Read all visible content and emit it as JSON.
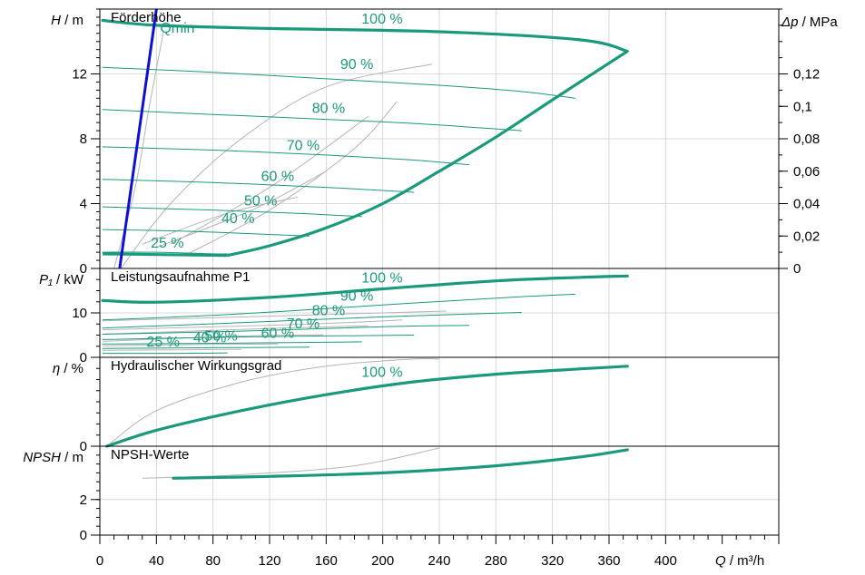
{
  "chart_data": {
    "type": "line",
    "x_axis": {
      "label_symbol": "Q",
      "label_unit": "m³/h",
      "range": [
        0,
        480
      ],
      "ticks": [
        "0",
        "40",
        "80",
        "120",
        "160",
        "200",
        "240",
        "280",
        "320",
        "360",
        "400"
      ]
    },
    "colors": {
      "curve": "#1a9a7c",
      "grey": "#b5b5b5",
      "qmin": "#1010d0",
      "axis": "#000000"
    },
    "panels": [
      {
        "id": "head",
        "title": "Förderhöhe",
        "ylabel_symbol": "H",
        "ylabel_unit": "m",
        "ylim": [
          0,
          16
        ],
        "yticks": [
          "0",
          "4",
          "8",
          "12"
        ],
        "secondary_ylabel_symbol": "Δp",
        "secondary_ylabel_unit": "MPa",
        "secondary_ylim": [
          0,
          0.16
        ],
        "secondary_yticks": [
          "0",
          "0,02",
          "0,04",
          "0,06",
          "0,08",
          "0,1",
          "0,12"
        ],
        "qmin_label": "Qmin",
        "qmin_line": [
          [
            14,
            0
          ],
          [
            40,
            16
          ]
        ],
        "envelope": [
          [
            2,
            15.3
          ],
          [
            40,
            15.0
          ],
          [
            120,
            14.8
          ],
          [
            240,
            14.6
          ],
          [
            340,
            14.1
          ],
          [
            373,
            13.4
          ],
          [
            320,
            10.4
          ],
          [
            280,
            8.1
          ],
          [
            240,
            6.0
          ],
          [
            200,
            4.0
          ],
          [
            160,
            2.5
          ],
          [
            120,
            1.4
          ],
          [
            90,
            0.8
          ],
          [
            2,
            0.9
          ]
        ],
        "series": [
          {
            "name": "100 %",
            "label_x": 185,
            "label_y": 15.1,
            "points": [
              [
                2,
                15.3
              ],
              [
                40,
                15.0
              ],
              [
                120,
                14.8
              ],
              [
                240,
                14.6
              ],
              [
                340,
                14.1
              ],
              [
                373,
                13.4
              ]
            ]
          },
          {
            "name": "90 %",
            "label_x": 170,
            "label_y": 12.3,
            "points": [
              [
                2,
                12.4
              ],
              [
                80,
                12.1
              ],
              [
                160,
                11.7
              ],
              [
                240,
                11.3
              ],
              [
                300,
                10.9
              ],
              [
                336,
                10.5
              ]
            ]
          },
          {
            "name": "80 %",
            "label_x": 150,
            "label_y": 9.6,
            "points": [
              [
                2,
                9.8
              ],
              [
                80,
                9.5
              ],
              [
                160,
                9.2
              ],
              [
                230,
                8.9
              ],
              [
                298,
                8.5
              ]
            ]
          },
          {
            "name": "70 %",
            "label_x": 132,
            "label_y": 7.3,
            "points": [
              [
                2,
                7.5
              ],
              [
                80,
                7.3
              ],
              [
                160,
                7.0
              ],
              [
                220,
                6.7
              ],
              [
                261,
                6.4
              ]
            ]
          },
          {
            "name": "60 %",
            "label_x": 114,
            "label_y": 5.4,
            "points": [
              [
                2,
                5.5
              ],
              [
                80,
                5.3
              ],
              [
                160,
                5.0
              ],
              [
                222,
                4.7
              ]
            ]
          },
          {
            "name": "50 %",
            "label_x": 102,
            "label_y": 3.9,
            "points": [
              [
                2,
                3.8
              ],
              [
                80,
                3.6
              ],
              [
                140,
                3.4
              ],
              [
                185,
                3.2
              ]
            ]
          },
          {
            "name": "40 %",
            "label_x": 86,
            "label_y": 2.8,
            "points": [
              [
                2,
                2.4
              ],
              [
                60,
                2.3
              ],
              [
                120,
                2.1
              ],
              [
                148,
                2.0
              ]
            ]
          },
          {
            "name": "25 %",
            "label_x": 36,
            "label_y": 1.3,
            "points": [
              [
                2,
                1.0
              ],
              [
                40,
                1.0
              ],
              [
                80,
                0.9
              ],
              [
                90,
                0.9
              ]
            ]
          }
        ],
        "grey_curves": [
          [
            [
              10,
              0
            ],
            [
              25,
              5
            ],
            [
              35,
              10
            ],
            [
              45,
              14.6
            ]
          ],
          [
            [
              15,
              0
            ],
            [
              50,
              4
            ],
            [
              100,
              8
            ],
            [
              160,
              11.2
            ],
            [
              235,
              12.6
            ]
          ],
          [
            [
              60,
              0.8
            ],
            [
              120,
              3.6
            ],
            [
              180,
              7.4
            ],
            [
              210,
              10.3
            ]
          ],
          [
            [
              50,
              1.5
            ],
            [
              120,
              5.0
            ],
            [
              190,
              9.4
            ]
          ],
          [
            [
              40,
              1.3
            ],
            [
              110,
              3.7
            ],
            [
              160,
              6.0
            ]
          ],
          [
            [
              30,
              1.5
            ],
            [
              90,
              3.4
            ],
            [
              140,
              4.4
            ]
          ]
        ]
      },
      {
        "id": "power",
        "title": "Leistungsaufnahme P1",
        "ylabel_symbol": "P₁",
        "ylabel_unit": "kW",
        "ylim": [
          0,
          20
        ],
        "yticks": [
          "0",
          "10"
        ],
        "series": [
          {
            "name": "100 %",
            "label_x": 185,
            "label_y": 16.8,
            "points": [
              [
                2,
                12.8
              ],
              [
                40,
                12.4
              ],
              [
                120,
                13.5
              ],
              [
                200,
                15.4
              ],
              [
                280,
                17.2
              ],
              [
                340,
                18.0
              ],
              [
                373,
                18.3
              ]
            ]
          },
          {
            "name": "90 %",
            "label_x": 170,
            "label_y": 12.8,
            "points": [
              [
                2,
                8.4
              ],
              [
                100,
                9.8
              ],
              [
                200,
                11.8
              ],
              [
                290,
                13.5
              ],
              [
                336,
                14.2
              ]
            ]
          },
          {
            "name": "80 %",
            "label_x": 150,
            "label_y": 9.5,
            "points": [
              [
                2,
                6.6
              ],
              [
                100,
                7.8
              ],
              [
                200,
                9.1
              ],
              [
                298,
                10.1
              ]
            ]
          },
          {
            "name": "70 %",
            "label_x": 132,
            "label_y": 6.5,
            "points": [
              [
                2,
                5.2
              ],
              [
                100,
                5.9
              ],
              [
                200,
                6.9
              ],
              [
                261,
                7.2
              ]
            ]
          },
          {
            "name": "60 %",
            "label_x": 114,
            "label_y": 4.4,
            "points": [
              [
                2,
                4.0
              ],
              [
                100,
                4.6
              ],
              [
                222,
                5.0
              ]
            ]
          },
          {
            "name": "50 %",
            "label_x": 74,
            "label_y": 3.8,
            "points": [
              [
                2,
                3.0
              ],
              [
                100,
                3.2
              ],
              [
                185,
                3.5
              ]
            ]
          },
          {
            "name": "40 %",
            "label_x": 66,
            "label_y": 3.4,
            "points": [
              [
                2,
                2.0
              ],
              [
                100,
                2.2
              ],
              [
                148,
                2.3
              ]
            ]
          },
          {
            "name": "25 %",
            "label_x": 33,
            "label_y": 2.4,
            "points": [
              [
                2,
                0.9
              ],
              [
                60,
                0.9
              ],
              [
                90,
                1.0
              ]
            ]
          }
        ],
        "grey_curves": [
          [
            [
              2,
              8.2
            ],
            [
              200,
              10.0
            ],
            [
              245,
              10.4
            ]
          ],
          [
            [
              2,
              6.2
            ],
            [
              140,
              7.4
            ],
            [
              214,
              8.4
            ]
          ],
          [
            [
              2,
              5.2
            ],
            [
              120,
              6.5
            ],
            [
              190,
              7.1
            ]
          ],
          [
            [
              2,
              3.6
            ],
            [
              100,
              4.8
            ],
            [
              158,
              5.1
            ]
          ],
          [
            [
              2,
              2.6
            ],
            [
              80,
              2.9
            ],
            [
              126,
              3.0
            ]
          ],
          [
            [
              2,
              1.6
            ],
            [
              60,
              1.7
            ],
            [
              100,
              1.8
            ]
          ]
        ]
      },
      {
        "id": "efficiency",
        "title": "Hydraulischer Wirkungsgrad",
        "ylabel_symbol": "η",
        "ylabel_unit": "%",
        "ylim": [
          0,
          100
        ],
        "yticks": [
          "0"
        ],
        "series": [
          {
            "name": "100 %",
            "label_x": 185,
            "label_y": 78,
            "points": [
              [
                5,
                0
              ],
              [
                40,
                18
              ],
              [
                100,
                40
              ],
              [
                160,
                58
              ],
              [
                220,
                72
              ],
              [
                280,
                81
              ],
              [
                340,
                87
              ],
              [
                373,
                90
              ]
            ]
          }
        ],
        "grey_curves": [
          [
            [
              5,
              0
            ],
            [
              40,
              40
            ],
            [
              100,
              72
            ],
            [
              160,
              90
            ],
            [
              220,
              98
            ],
            [
              240,
              98
            ]
          ]
        ]
      },
      {
        "id": "npsh",
        "title": "NPSH-Werte",
        "ylabel_symbol": "NPSH",
        "ylabel_unit": "m",
        "ylim": [
          0,
          5
        ],
        "yticks": [
          "0",
          "2"
        ],
        "series": [
          {
            "name": "100 %",
            "points": [
              [
                52,
                3.2
              ],
              [
                120,
                3.3
              ],
              [
                200,
                3.5
              ],
              [
                280,
                3.9
              ],
              [
                340,
                4.4
              ],
              [
                373,
                4.8
              ]
            ]
          }
        ],
        "grey_curves": [
          [
            [
              30,
              3.2
            ],
            [
              100,
              3.4
            ],
            [
              180,
              3.9
            ],
            [
              240,
              4.9
            ]
          ]
        ]
      }
    ]
  }
}
